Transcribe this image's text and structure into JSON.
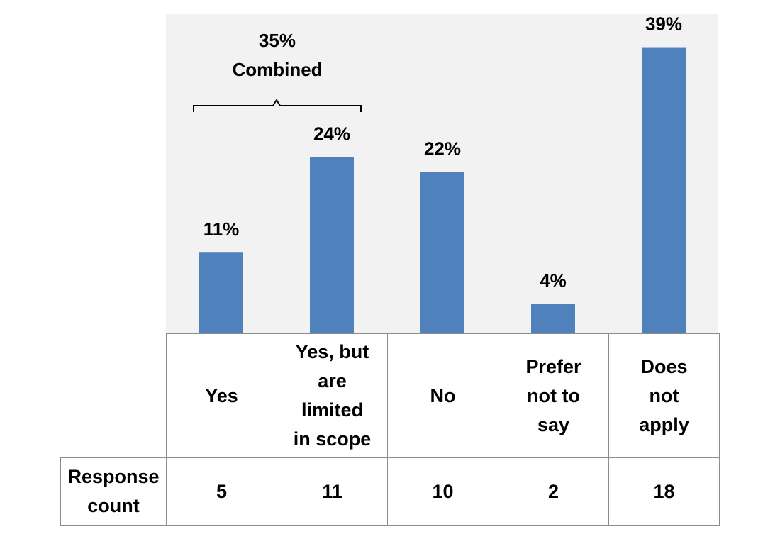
{
  "chart_data": {
    "type": "bar",
    "categories": [
      "Yes",
      "Yes, but are limited in scope",
      "No",
      "Prefer not to say",
      "Does not apply"
    ],
    "category_lines": [
      [
        "Yes"
      ],
      [
        "Yes, but",
        "are",
        "limited",
        "in scope"
      ],
      [
        "No"
      ],
      [
        "Prefer",
        "not to",
        "say"
      ],
      [
        "Does",
        "not",
        "apply"
      ]
    ],
    "values": [
      11,
      24,
      22,
      4,
      39
    ],
    "value_labels": [
      "11%",
      "24%",
      "22%",
      "4%",
      "39%"
    ],
    "ylim": [
      0,
      43.5
    ],
    "grid": false,
    "bar_color": "#4f81bd",
    "background_color": "#f2f2f2",
    "annotation": {
      "lines": [
        "35%",
        "Combined"
      ],
      "spans_categories": [
        0,
        1
      ]
    },
    "table": {
      "row_label_lines": [
        "Response",
        "count"
      ],
      "response_counts": [
        "5",
        "11",
        "10",
        "2",
        "18"
      ]
    }
  }
}
